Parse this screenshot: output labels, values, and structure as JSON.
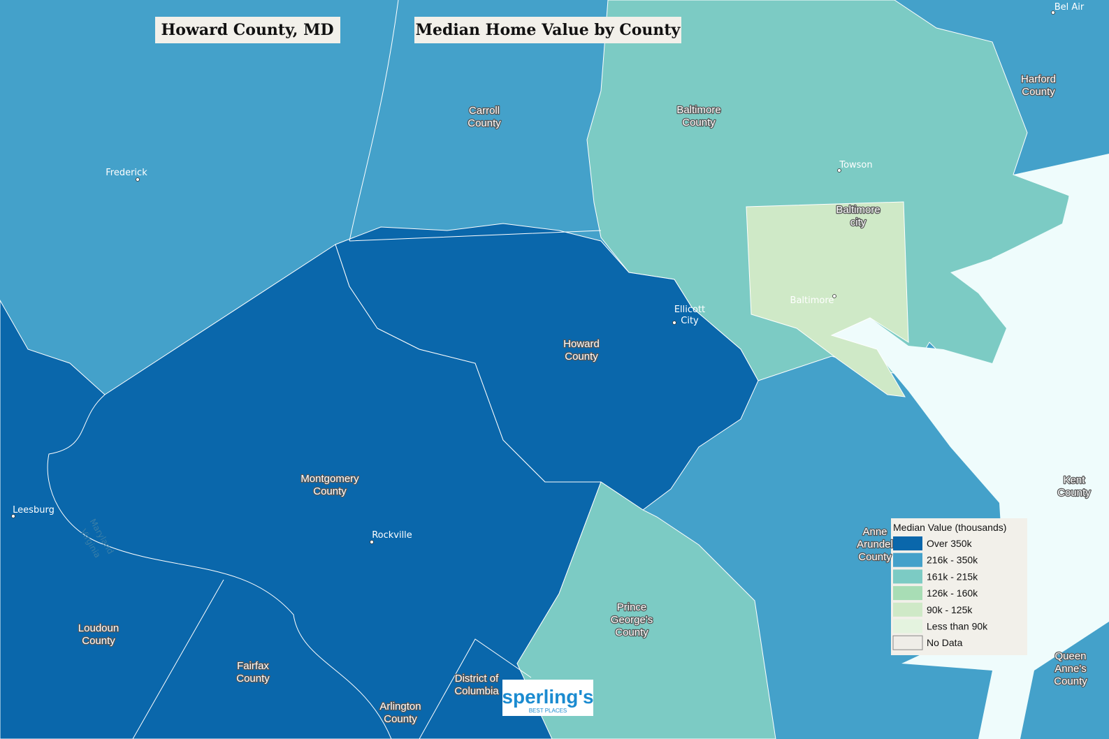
{
  "header": {
    "title": "Howard County, MD",
    "subtitle": "Median Home Value by County"
  },
  "counties": [
    {
      "lines": [
        "Carroll",
        "County"
      ]
    },
    {
      "lines": [
        "Baltimore",
        "County"
      ]
    },
    {
      "lines": [
        "Harford",
        "County"
      ]
    },
    {
      "lines": [
        "Baltimore",
        "city"
      ]
    },
    {
      "lines": [
        "Howard",
        "County"
      ]
    },
    {
      "lines": [
        "Montgomery",
        "County"
      ]
    },
    {
      "lines": [
        "Loudoun",
        "County"
      ]
    },
    {
      "lines": [
        "Fairfax",
        "County"
      ]
    },
    {
      "lines": [
        "Arlington",
        "County"
      ]
    },
    {
      "lines": [
        "District of",
        "Columbia"
      ]
    },
    {
      "lines": [
        "Prince",
        "George's",
        "County"
      ]
    },
    {
      "lines": [
        "Anne",
        "Arundel",
        "County"
      ]
    },
    {
      "lines": [
        "Kent",
        "County"
      ]
    },
    {
      "lines": [
        "Queen",
        "Anne's",
        "County"
      ]
    }
  ],
  "cities": [
    {
      "lines": [
        "Frederick"
      ]
    },
    {
      "lines": [
        "Towson"
      ]
    },
    {
      "lines": [
        "Baltimore"
      ]
    },
    {
      "lines": [
        "Rockville"
      ]
    },
    {
      "lines": [
        "Leesburg"
      ]
    },
    {
      "lines": [
        "Ellicott",
        "City"
      ]
    },
    {
      "lines": [
        "Bel Air"
      ]
    }
  ],
  "state_labels": [
    "Maryland",
    "Virginia"
  ],
  "legend": {
    "title": "Median Value (thousands)",
    "items": [
      {
        "label": "Over 350k",
        "color": "#0a67ab"
      },
      {
        "label": "216k - 350k",
        "color": "#44a1ca"
      },
      {
        "label": "161k - 215k",
        "color": "#7ccbc4"
      },
      {
        "label": "126k - 160k",
        "color": "#a8ddb5"
      },
      {
        "label": "90k - 125k",
        "color": "#cfe9c7"
      },
      {
        "label": "Less than 90k",
        "color": "#e4f3df"
      },
      {
        "label": "No Data",
        "color": "#efede8"
      }
    ]
  },
  "logo": {
    "name": "sperling's",
    "tagline": "BEST PLACES"
  }
}
